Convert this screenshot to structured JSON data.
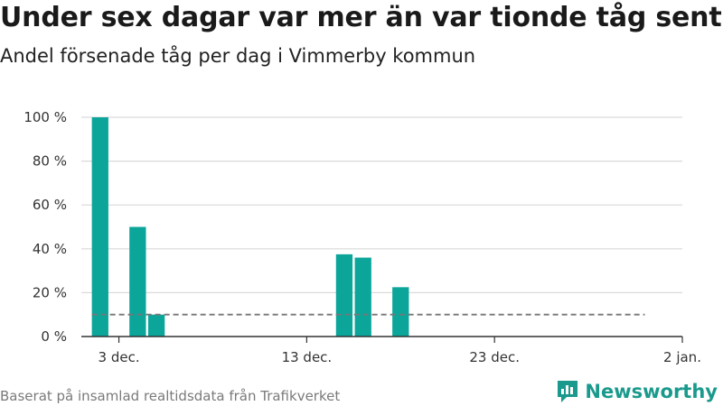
{
  "title": "Under sex dagar var mer än var tionde tåg sent",
  "subtitle": "Andel försenade tåg per dag i Vimmerby kommun",
  "footer": "Baserat på insamlad realtidsdata från Trafikverket",
  "brand": {
    "name": "Newsworthy",
    "icon": "newsworthy-logo-icon",
    "color": "#1a9a8c"
  },
  "chart_data": {
    "type": "bar",
    "x_label": "",
    "y_label": "",
    "ylim": [
      0,
      100
    ],
    "y_ticks": [
      0,
      20,
      40,
      60,
      80,
      100
    ],
    "y_tick_labels": [
      "0 %",
      "20 %",
      "40 %",
      "60 %",
      "80 %",
      "100 %"
    ],
    "x_start_day": -2,
    "x_end_day": 30,
    "x_ticks": [
      {
        "day": 0,
        "label": "3 dec."
      },
      {
        "day": 10,
        "label": "13 dec."
      },
      {
        "day": 20,
        "label": "23 dec."
      },
      {
        "day": 30,
        "label": "2 jan."
      }
    ],
    "bar_color": "#0ba59a",
    "series": [
      {
        "values": [
          {
            "date": "2 dec.",
            "day": -1,
            "value": 100
          },
          {
            "date": "4 dec.",
            "day": 1,
            "value": 50
          },
          {
            "date": "5 dec.",
            "day": 2,
            "value": 10
          },
          {
            "date": "15 dec.",
            "day": 12,
            "value": 37.5
          },
          {
            "date": "16 dec.",
            "day": 13,
            "value": 36
          },
          {
            "date": "18 dec.",
            "day": 15,
            "value": 22.5
          }
        ]
      }
    ],
    "reference_line": {
      "value": 10,
      "from_day": -1,
      "to_day": 28,
      "style": "dashed",
      "color": "#777777"
    },
    "grid": true,
    "legend": "none"
  }
}
